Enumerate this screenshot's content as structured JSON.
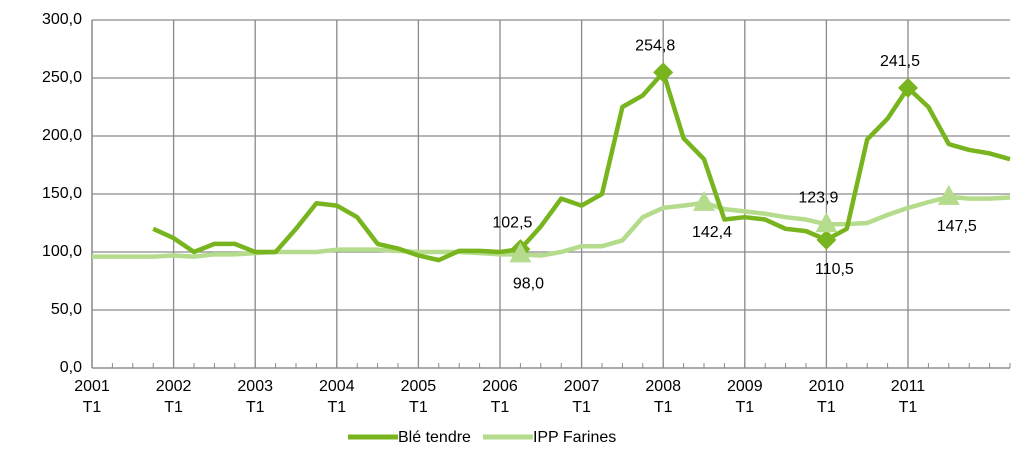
{
  "chart_data": {
    "type": "line",
    "categories": [
      "2001 T1",
      null,
      null,
      null,
      "2002 T1",
      null,
      null,
      null,
      "2003 T1",
      null,
      null,
      null,
      "2004 T1",
      null,
      null,
      null,
      "2005 T1",
      null,
      null,
      null,
      "2006 T1",
      null,
      null,
      null,
      "2007 T1",
      null,
      null,
      null,
      "2008 T1",
      null,
      null,
      null,
      "2009 T1",
      null,
      null,
      null,
      "2010 T1",
      null,
      null,
      null,
      "2011 T1",
      null,
      null,
      null,
      null,
      null
    ],
    "series": [
      {
        "name": "Blé tendre",
        "color": "#78b41e",
        "marker": "diamond",
        "values": [
          null,
          null,
          null,
          120,
          112,
          100,
          107,
          107,
          100,
          100,
          120,
          142,
          140,
          130,
          107,
          103,
          97,
          93,
          101,
          101,
          100,
          102.5,
          122,
          146,
          140,
          150,
          225,
          235,
          254.8,
          198,
          180,
          128,
          130,
          128,
          120,
          118,
          110.5,
          120,
          197,
          215,
          241.5,
          225,
          193,
          188,
          185,
          180
        ],
        "value_labels": [
          null,
          null,
          null,
          null,
          null,
          null,
          null,
          null,
          null,
          null,
          null,
          null,
          null,
          null,
          null,
          null,
          null,
          null,
          null,
          null,
          null,
          "102,5",
          null,
          null,
          null,
          null,
          null,
          null,
          "254,8",
          null,
          null,
          null,
          null,
          null,
          null,
          null,
          "110,5",
          null,
          null,
          null,
          "241,5",
          null,
          null,
          null,
          null,
          null
        ]
      },
      {
        "name": "IPP Farines",
        "color": "#b4dc8c",
        "marker": "triangle",
        "values": [
          96,
          96,
          96,
          96,
          97,
          96,
          98,
          98,
          99,
          100,
          100,
          100,
          102,
          102,
          102,
          101,
          100,
          100,
          100,
          99,
          98,
          98,
          97,
          100,
          105,
          105,
          110,
          130,
          138,
          140,
          142.4,
          137,
          135,
          133,
          130,
          128,
          123.9,
          124,
          125,
          132,
          138,
          143,
          147.5,
          146,
          146,
          147
        ],
        "value_labels": [
          null,
          null,
          null,
          null,
          null,
          null,
          null,
          null,
          null,
          null,
          null,
          null,
          null,
          null,
          null,
          null,
          null,
          null,
          null,
          null,
          null,
          "98,0",
          null,
          null,
          null,
          null,
          null,
          null,
          null,
          null,
          "142,4",
          null,
          null,
          null,
          null,
          null,
          "123,9",
          null,
          null,
          null,
          null,
          null,
          "147,5",
          null,
          null,
          null
        ]
      }
    ],
    "ylim": [
      0,
      300
    ],
    "yticks": [
      {
        "value": 0,
        "label": "0,0"
      },
      {
        "value": 50,
        "label": "50,0"
      },
      {
        "value": 100,
        "label": "100,0"
      },
      {
        "value": 150,
        "label": "150,0"
      },
      {
        "value": 200,
        "label": "200,0"
      },
      {
        "value": 250,
        "label": "250,0"
      },
      {
        "value": 300,
        "label": "300,0"
      }
    ],
    "grid": true,
    "legend": "bottom"
  }
}
